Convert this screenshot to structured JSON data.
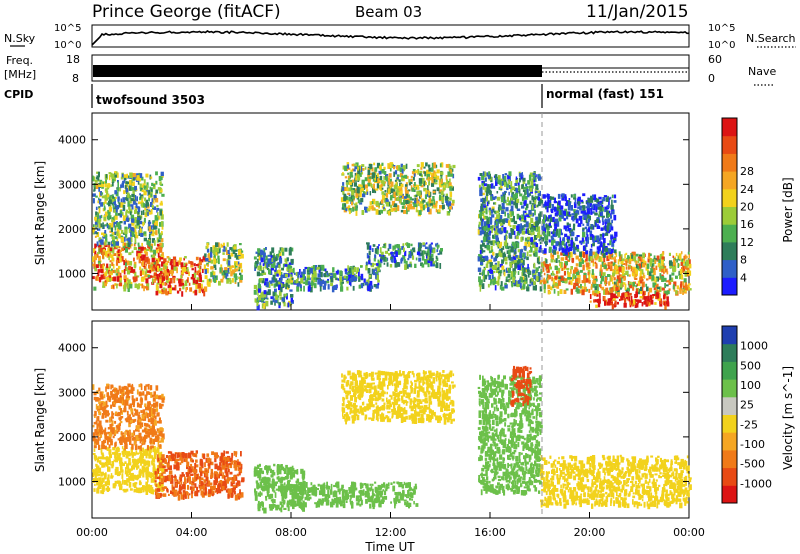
{
  "header": {
    "station": "Prince George (fitACF)",
    "beam": "Beam 03",
    "date": "11/Jan/2015"
  },
  "strips": {
    "nsky": {
      "label": "N.Sky",
      "tick_top": "10^5",
      "tick_bottom": "10^0"
    },
    "nsearch": {
      "label": "N.Search",
      "tick_top": "10^5",
      "tick_bottom": "10^0"
    },
    "freq": {
      "label_line1": "Freq.",
      "label_line2": "[MHz]",
      "tick_top": "18",
      "tick_bottom": "8"
    },
    "nave": {
      "label": "Nave",
      "tick_top": "60",
      "tick_bottom": "0"
    },
    "cpid": {
      "label": "CPID",
      "programs": [
        {
          "name": "twofsound 3503",
          "start_hour": 0,
          "end_hour": 18
        },
        {
          "name": "normal (fast) 151",
          "start_hour": 18,
          "end_hour": 24
        }
      ]
    }
  },
  "chart_data": [
    {
      "type": "heatmap",
      "title": "Power",
      "xlabel": "",
      "ylabel": "Slant Range [km]",
      "xlim": [
        0,
        24
      ],
      "ylim": [
        180,
        4600
      ],
      "yticks": [
        "1000",
        "2000",
        "3000",
        "4000"
      ],
      "colorbar": {
        "label": "Power [dB]",
        "ticks": [
          "4",
          "8",
          "12",
          "16",
          "20",
          "24",
          "28"
        ],
        "colors": [
          "#1c1cff",
          "#2f5fc8",
          "#2e7d5a",
          "#4caf50",
          "#9ccc38",
          "#f2d21c",
          "#f5a623",
          "#f07a18",
          "#e84a14",
          "#dc1414"
        ]
      },
      "scatter_regions": [
        {
          "x0": 0.0,
          "x1": 2.8,
          "y0": 700,
          "y1": 1700,
          "value": 22
        },
        {
          "x0": 0.0,
          "x1": 2.8,
          "y0": 1700,
          "y1": 3300,
          "value": 12
        },
        {
          "x0": 2.5,
          "x1": 4.5,
          "y0": 600,
          "y1": 1400,
          "value": 24
        },
        {
          "x0": 4.5,
          "x1": 6.0,
          "y0": 800,
          "y1": 1700,
          "value": 14
        },
        {
          "x0": 6.5,
          "x1": 8.0,
          "y0": 300,
          "y1": 1600,
          "value": 10
        },
        {
          "x0": 8.0,
          "x1": 11.5,
          "y0": 700,
          "y1": 1200,
          "value": 9
        },
        {
          "x0": 11.0,
          "x1": 14.0,
          "y0": 1200,
          "y1": 1700,
          "value": 9
        },
        {
          "x0": 10.0,
          "x1": 14.5,
          "y0": 2400,
          "y1": 3500,
          "value": 14
        },
        {
          "x0": 15.5,
          "x1": 18.0,
          "y0": 700,
          "y1": 3300,
          "value": 10
        },
        {
          "x0": 18.0,
          "x1": 24.0,
          "y0": 600,
          "y1": 1500,
          "value": 18
        },
        {
          "x0": 20.0,
          "x1": 23.2,
          "y0": 300,
          "y1": 600,
          "value": 28
        },
        {
          "x0": 18.0,
          "x1": 21.0,
          "y0": 1500,
          "y1": 2800,
          "value": 6
        }
      ]
    },
    {
      "type": "heatmap",
      "title": "Velocity",
      "xlabel": "Time UT",
      "ylabel": "Slant Range [km]",
      "xlim": [
        0,
        24
      ],
      "ylim": [
        180,
        4600
      ],
      "yticks": [
        "1000",
        "2000",
        "3000",
        "4000"
      ],
      "xticks": [
        "00:00",
        "04:00",
        "08:00",
        "12:00",
        "16:00",
        "20:00",
        "00:00"
      ],
      "colorbar": {
        "label": "Velocity [m s^-1]",
        "ticks": [
          "1000",
          "500",
          "100",
          "25",
          "-25",
          "-100",
          "-500",
          "-1000"
        ],
        "colors": [
          "#1f3fb0",
          "#2e7d5a",
          "#3fa34d",
          "#6cc04a",
          "#c8c8c0",
          "#f2d21c",
          "#f5a623",
          "#f07a18",
          "#e84a14",
          "#dc1414"
        ]
      },
      "scatter_regions": [
        {
          "x0": 0.0,
          "x1": 2.8,
          "y0": 800,
          "y1": 1800,
          "value": 0
        },
        {
          "x0": 0.0,
          "x1": 2.8,
          "y0": 1800,
          "y1": 3200,
          "value": -120
        },
        {
          "x0": 2.5,
          "x1": 6.0,
          "y0": 700,
          "y1": 1700,
          "value": -500
        },
        {
          "x0": 6.5,
          "x1": 8.5,
          "y0": 400,
          "y1": 1400,
          "value": 300
        },
        {
          "x0": 8.0,
          "x1": 13.0,
          "y0": 500,
          "y1": 1000,
          "value": 200
        },
        {
          "x0": 10.0,
          "x1": 14.5,
          "y0": 2400,
          "y1": 3500,
          "value": 0
        },
        {
          "x0": 15.5,
          "x1": 18.0,
          "y0": 800,
          "y1": 3400,
          "value": 150
        },
        {
          "x0": 18.0,
          "x1": 24.0,
          "y0": 500,
          "y1": 1600,
          "value": 0
        },
        {
          "x0": 16.8,
          "x1": 17.6,
          "y0": 2800,
          "y1": 3600,
          "value": -800
        }
      ]
    }
  ]
}
